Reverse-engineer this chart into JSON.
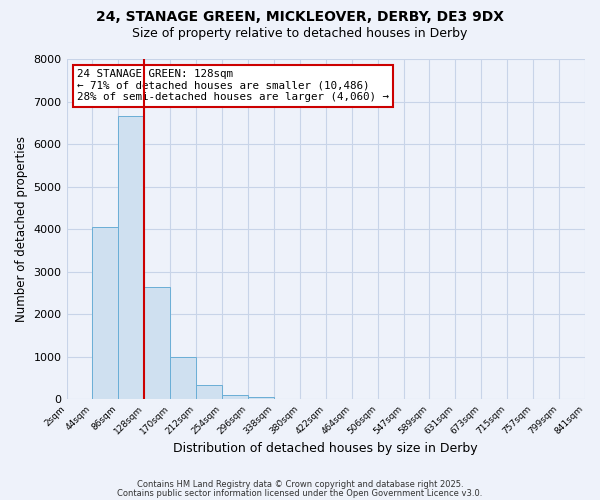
{
  "title1": "24, STANAGE GREEN, MICKLEOVER, DERBY, DE3 9DX",
  "title2": "Size of property relative to detached houses in Derby",
  "xlabel": "Distribution of detached houses by size in Derby",
  "ylabel": "Number of detached properties",
  "bar_values": [
    0,
    4050,
    6650,
    2650,
    1000,
    330,
    100,
    50,
    0,
    0,
    0,
    0,
    0,
    0,
    0,
    0,
    0,
    0,
    0,
    0
  ],
  "bin_labels": [
    "2sqm",
    "44sqm",
    "86sqm",
    "128sqm",
    "170sqm",
    "212sqm",
    "254sqm",
    "296sqm",
    "338sqm",
    "380sqm",
    "422sqm",
    "464sqm",
    "506sqm",
    "547sqm",
    "589sqm",
    "631sqm",
    "673sqm",
    "715sqm",
    "757sqm",
    "799sqm",
    "841sqm"
  ],
  "bar_color": "#cfe0f0",
  "bar_edge_color": "#6aaed6",
  "vline_color": "#cc0000",
  "annotation_title": "24 STANAGE GREEN: 128sqm",
  "annotation_line1": "← 71% of detached houses are smaller (10,486)",
  "annotation_line2": "28% of semi-detached houses are larger (4,060) →",
  "annotation_box_color": "#cc0000",
  "ylim": [
    0,
    8000
  ],
  "yticks": [
    0,
    1000,
    2000,
    3000,
    4000,
    5000,
    6000,
    7000,
    8000
  ],
  "footer1": "Contains HM Land Registry data © Crown copyright and database right 2025.",
  "footer2": "Contains public sector information licensed under the Open Government Licence v3.0.",
  "bg_color": "#eef2fa",
  "grid_color": "#c8d4e8"
}
